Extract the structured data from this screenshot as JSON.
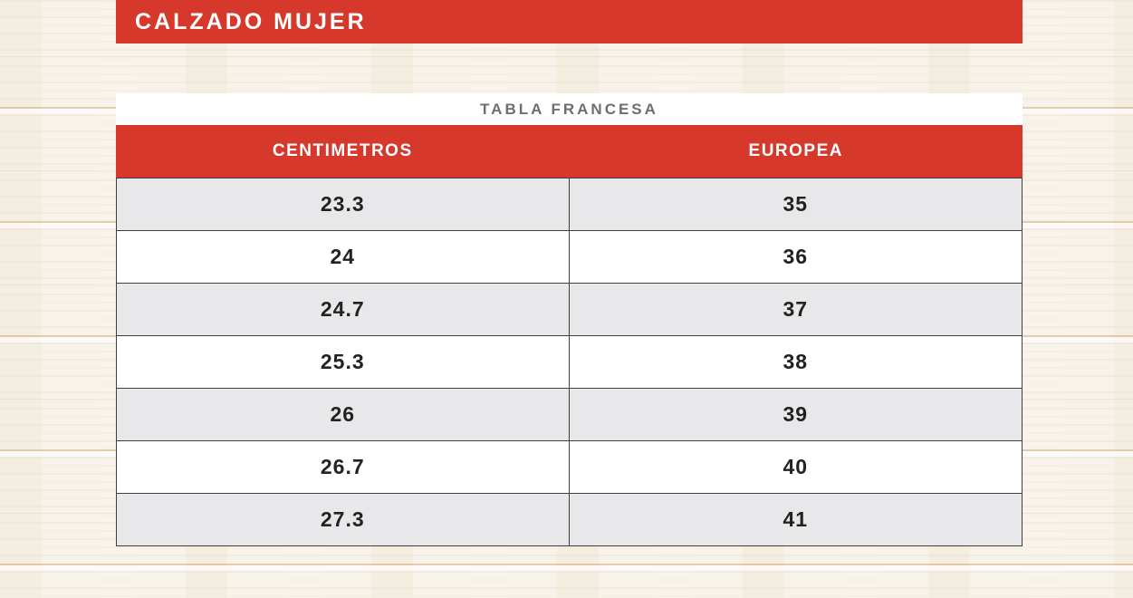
{
  "header": {
    "title": "CALZADO MUJER"
  },
  "chart_data": {
    "type": "table",
    "title": "TABLA FRANCESA",
    "columns": [
      "CENTIMETROS",
      "EUROPEA"
    ],
    "rows": [
      [
        "23.3",
        "35"
      ],
      [
        "24",
        "36"
      ],
      [
        "24.7",
        "37"
      ],
      [
        "25.3",
        "38"
      ],
      [
        "26",
        "39"
      ],
      [
        "26.7",
        "40"
      ],
      [
        "27.3",
        "41"
      ]
    ]
  },
  "colors": {
    "accent_red": "#d6392b",
    "row_alt_gray": "#e8e8ea",
    "border_dark": "#3f3f3f",
    "table_title_gray": "#6d6e70",
    "cell_text": "#222222"
  }
}
